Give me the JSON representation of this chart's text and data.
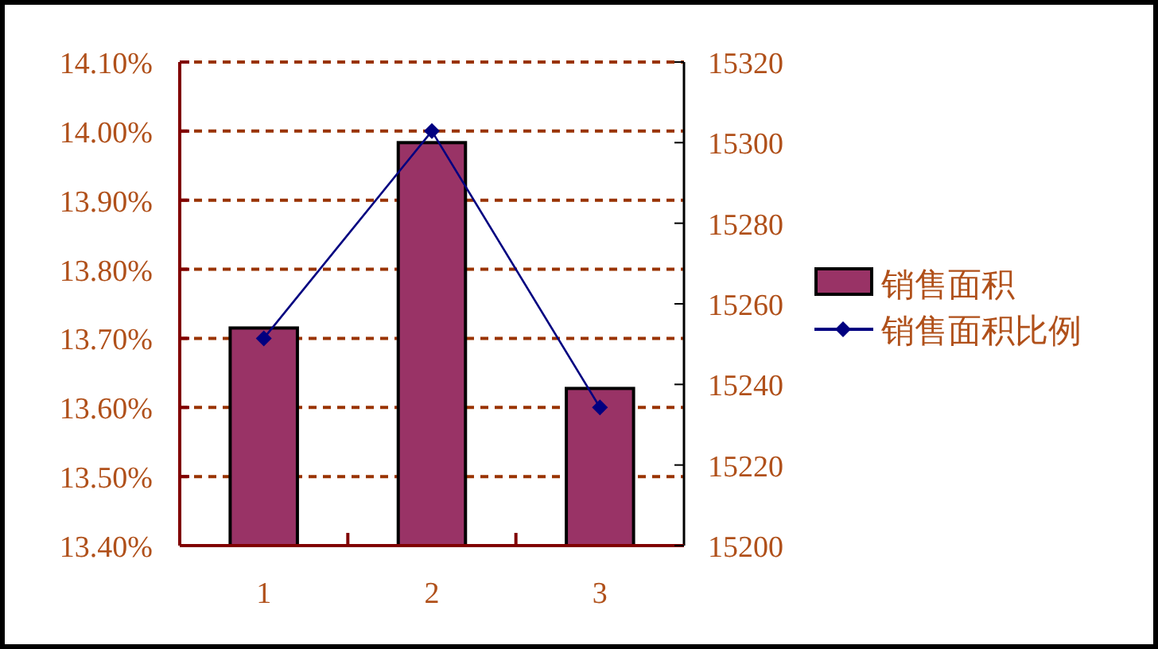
{
  "chart_data": {
    "type": "bar",
    "categories": [
      "1",
      "2",
      "3"
    ],
    "series": [
      {
        "name": "销售面积",
        "axis": "y2",
        "color": "#993366",
        "values": [
          15254,
          15300,
          15239
        ]
      },
      {
        "name": "销售面积比例",
        "type": "line",
        "axis": "y",
        "color": "#000080",
        "values": [
          13.7,
          14.0,
          13.6
        ]
      }
    ],
    "ylim": [
      13.4,
      14.1
    ],
    "yticks": [
      {
        "value": 13.4,
        "label": "13.40%"
      },
      {
        "value": 13.5,
        "label": "13.50%"
      },
      {
        "value": 13.6,
        "label": "13.60%"
      },
      {
        "value": 13.7,
        "label": "13.70%"
      },
      {
        "value": 13.8,
        "label": "13.80%"
      },
      {
        "value": 13.9,
        "label": "13.90%"
      },
      {
        "value": 14.0,
        "label": "14.00%"
      },
      {
        "value": 14.1,
        "label": "14.10%"
      }
    ],
    "y2lim": [
      15200,
      15320
    ],
    "y2ticks": [
      15200,
      15220,
      15240,
      15260,
      15280,
      15300,
      15320
    ],
    "grid": "y",
    "legend": "right",
    "marker": "diamond",
    "line_style": "solid"
  }
}
